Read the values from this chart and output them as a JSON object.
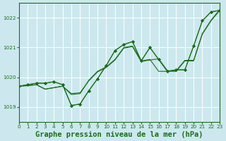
{
  "background_color": "#cce8ee",
  "grid_color": "#ffffff",
  "line_color": "#1a6e1a",
  "title": "Graphe pression niveau de la mer (hPa)",
  "xlim": [
    0,
    23
  ],
  "ylim": [
    1018.5,
    1022.5
  ],
  "yticks": [
    1019,
    1020,
    1021,
    1022
  ],
  "xticks": [
    0,
    1,
    2,
    3,
    4,
    5,
    6,
    7,
    8,
    9,
    10,
    11,
    12,
    13,
    14,
    15,
    16,
    17,
    18,
    19,
    20,
    21,
    22,
    23
  ],
  "series": [
    {
      "x": [
        0,
        1,
        2,
        3,
        4,
        5,
        6,
        7,
        8,
        9,
        10,
        11,
        12,
        13,
        14,
        15,
        16,
        17,
        18,
        19,
        20,
        21,
        22,
        23
      ],
      "y": [
        1019.7,
        1019.75,
        1019.8,
        1019.8,
        1019.85,
        1019.75,
        1019.05,
        1019.1,
        1019.55,
        1019.95,
        1020.4,
        1020.9,
        1021.1,
        1021.2,
        1020.55,
        1021.0,
        1020.6,
        1020.2,
        1020.25,
        1020.25,
        1021.05,
        1021.9,
        1022.2,
        1022.25
      ],
      "has_marker": true
    },
    {
      "x": [
        0,
        1,
        2,
        3,
        4,
        5,
        6,
        7,
        8,
        9,
        10,
        11,
        12,
        13,
        14,
        15,
        16,
        17,
        18,
        19,
        20,
        21,
        22,
        23
      ],
      "y": [
        1019.7,
        1019.72,
        1019.75,
        1019.6,
        1019.65,
        1019.7,
        1019.42,
        1019.45,
        1019.9,
        1020.2,
        1020.35,
        1020.6,
        1021.0,
        1021.05,
        1020.55,
        1020.6,
        1020.2,
        1020.2,
        1020.2,
        1020.55,
        1020.55,
        1021.45,
        1021.9,
        1022.25
      ],
      "has_marker": false
    },
    {
      "x": [
        0,
        1,
        2,
        3,
        4,
        5,
        6,
        7,
        8,
        9,
        10,
        11,
        12,
        13,
        14,
        15,
        16,
        17,
        18,
        19,
        20,
        21,
        22,
        23
      ],
      "y": [
        1019.7,
        1019.72,
        1019.75,
        1019.6,
        1019.65,
        1019.7,
        1019.45,
        1019.48,
        1019.88,
        1020.18,
        1020.33,
        1020.58,
        1020.98,
        1021.03,
        1020.53,
        1020.58,
        1020.62,
        1020.22,
        1020.22,
        1020.57,
        1020.57,
        1021.47,
        1021.92,
        1022.28
      ],
      "has_marker": false
    },
    {
      "x": [
        0,
        1,
        2,
        3,
        4,
        5,
        6,
        7,
        8,
        9,
        10,
        11,
        12,
        13,
        14,
        15,
        16,
        17,
        18,
        19,
        20,
        21,
        22,
        23
      ],
      "y": [
        1019.7,
        1019.75,
        1019.8,
        1019.8,
        1019.85,
        1019.75,
        1019.05,
        1019.1,
        1019.55,
        1019.95,
        1020.4,
        1020.9,
        1021.1,
        1021.2,
        1020.55,
        1021.0,
        1020.6,
        1020.2,
        1020.25,
        1020.25,
        1021.05,
        1021.9,
        1022.2,
        1022.25
      ],
      "has_marker": true
    }
  ],
  "marker": "D",
  "markersize": 2.0,
  "linewidth": 0.8,
  "title_fontsize": 7.5,
  "tick_fontsize": 5.2
}
